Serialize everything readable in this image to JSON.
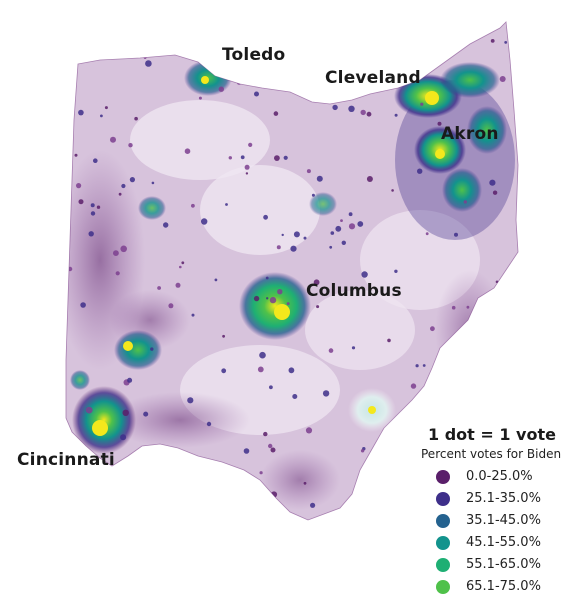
{
  "cities": {
    "toledo": "Toledo",
    "cleveland": "Cleveland",
    "akron": "Akron",
    "columbus": "Columbus",
    "cincinnati": "Cincinnati"
  },
  "legend": {
    "title": "1 dot = 1 vote",
    "subtitle": "Percent votes for Biden",
    "items": [
      {
        "label": "0.0-25.0%",
        "color": "#5a1f6a"
      },
      {
        "label": "25.1-35.0%",
        "color": "#3e2f8a"
      },
      {
        "label": "35.1-45.0%",
        "color": "#24628f"
      },
      {
        "label": "45.1-55.0%",
        "color": "#12938d"
      },
      {
        "label": "55.1-65.0%",
        "color": "#1eaf74"
      },
      {
        "label": "65.1-75.0%",
        "color": "#4fc14a"
      }
    ]
  },
  "colors": {
    "base_fill": "#d7c3dc",
    "light_fill": "#efe6f1",
    "rural_dot": "#7d3f8f",
    "hotspot_yellow": "#f4e81c"
  }
}
